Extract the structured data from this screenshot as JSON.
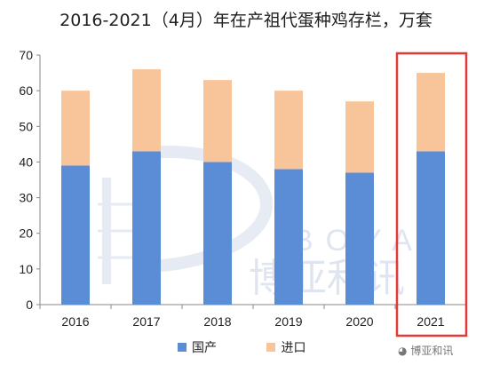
{
  "chart_data": {
    "type": "bar",
    "stacked": true,
    "title": "2016-2021（4月）年在产祖代蛋种鸡存栏，万套",
    "categories": [
      "2016",
      "2017",
      "2018",
      "2019",
      "2020",
      "2021"
    ],
    "series": [
      {
        "name": "国产",
        "values": [
          39,
          43,
          40,
          38,
          37,
          43
        ],
        "color": "#5B8DD6"
      },
      {
        "name": "进口",
        "values": [
          21,
          23,
          23,
          22,
          20,
          22
        ],
        "color": "#F8C49A"
      }
    ],
    "ylim": [
      0,
      70
    ],
    "yticks": [
      0,
      10,
      20,
      30,
      40,
      50,
      60,
      70
    ],
    "legend_position": "bottom",
    "highlight_category": "2021",
    "highlight_color": "#E53935"
  },
  "legend": {
    "domestic": "国产",
    "imported": "进口"
  },
  "watermark": {
    "text": "博亚和讯",
    "brand_color": "#B9C5DE"
  }
}
